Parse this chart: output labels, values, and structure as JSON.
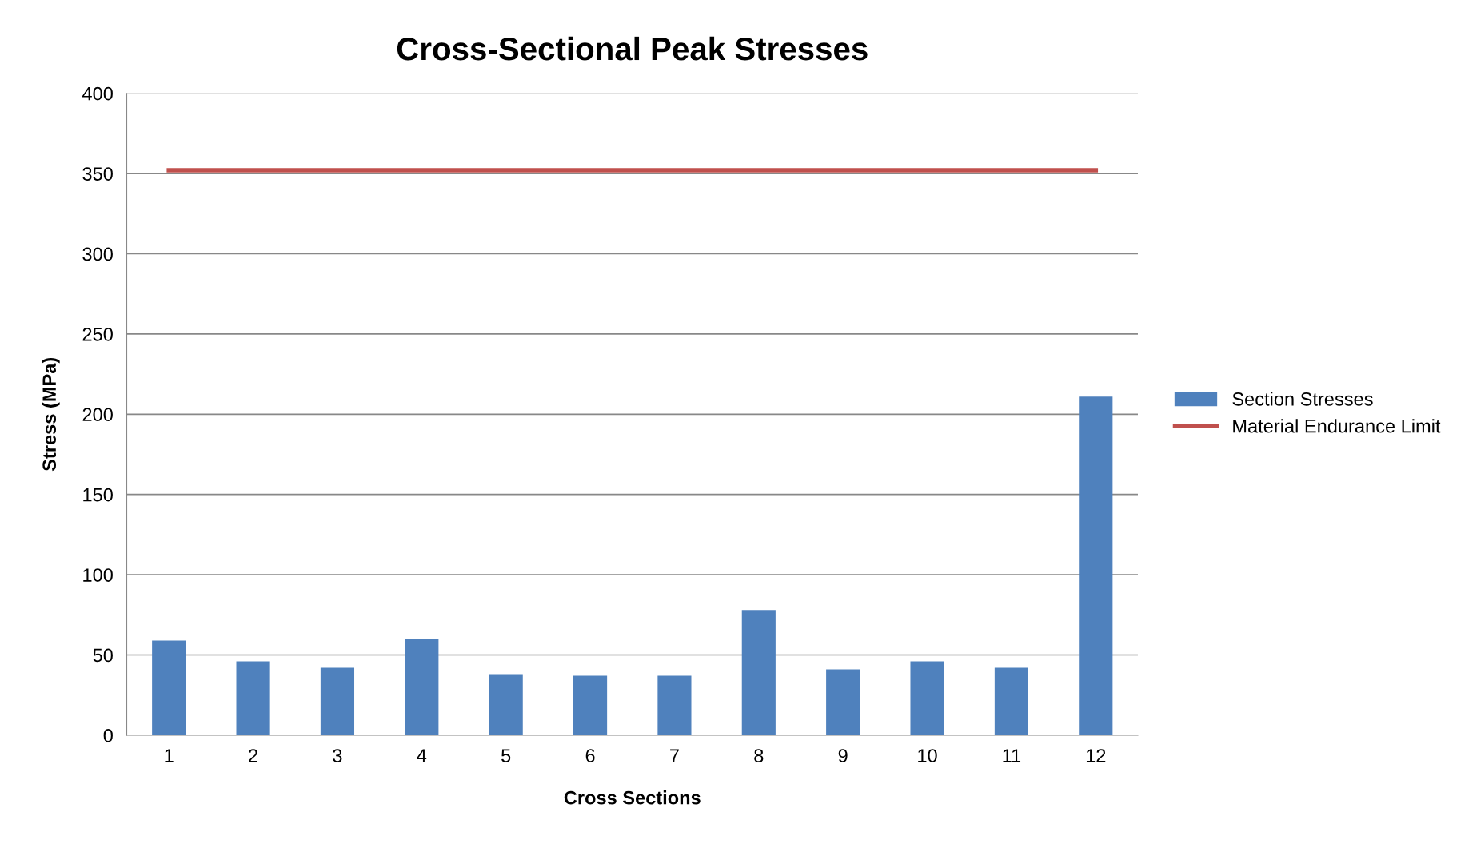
{
  "chart_data": {
    "type": "bar",
    "title": "Cross-Sectional Peak Stresses",
    "xlabel": "Cross Sections",
    "ylabel": "Stress (MPa)",
    "categories": [
      "1",
      "2",
      "3",
      "4",
      "5",
      "6",
      "7",
      "8",
      "9",
      "10",
      "11",
      "12"
    ],
    "series": [
      {
        "name": "Section Stresses",
        "color": "#4f81bd",
        "values": [
          59,
          46,
          42,
          60,
          38,
          37,
          37,
          78,
          41,
          46,
          42,
          211
        ]
      },
      {
        "name": "Material Endurance Limit",
        "type": "line",
        "color": "#c0504d",
        "values": [
          352,
          352,
          352,
          352,
          352,
          352,
          352,
          352,
          352,
          352,
          352,
          352
        ]
      }
    ],
    "ylim": [
      0,
      400
    ],
    "yticks": [
      0,
      50,
      100,
      150,
      200,
      250,
      300,
      350,
      400
    ],
    "grid": "y",
    "legend": "right",
    "marker": "none"
  }
}
